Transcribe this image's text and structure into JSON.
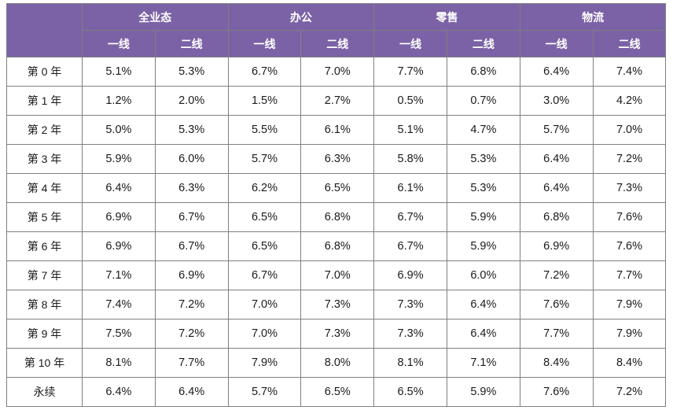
{
  "header": {
    "corner": "",
    "groups": [
      "全业态",
      "办公",
      "零售",
      "物流"
    ],
    "sub": [
      "一线",
      "二线"
    ],
    "colors": {
      "header_bg": "#7b62a6",
      "header_text": "#ffffff",
      "border": "#7f7f7f"
    }
  },
  "rows": [
    {
      "label": "第 0 年",
      "values": [
        "5.1%",
        "5.3%",
        "6.7%",
        "7.0%",
        "7.7%",
        "6.8%",
        "6.4%",
        "7.4%"
      ]
    },
    {
      "label": "第 1 年",
      "values": [
        "1.2%",
        "2.0%",
        "1.5%",
        "2.7%",
        "0.5%",
        "0.7%",
        "3.0%",
        "4.2%"
      ]
    },
    {
      "label": "第 2 年",
      "values": [
        "5.0%",
        "5.3%",
        "5.5%",
        "6.1%",
        "5.1%",
        "4.7%",
        "5.7%",
        "7.0%"
      ]
    },
    {
      "label": "第 3 年",
      "values": [
        "5.9%",
        "6.0%",
        "5.7%",
        "6.3%",
        "5.8%",
        "5.3%",
        "6.4%",
        "7.2%"
      ]
    },
    {
      "label": "第 4 年",
      "values": [
        "6.4%",
        "6.3%",
        "6.2%",
        "6.5%",
        "6.1%",
        "5.3%",
        "6.4%",
        "7.3%"
      ]
    },
    {
      "label": "第 5 年",
      "values": [
        "6.9%",
        "6.7%",
        "6.5%",
        "6.8%",
        "6.7%",
        "5.9%",
        "6.8%",
        "7.6%"
      ]
    },
    {
      "label": "第 6 年",
      "values": [
        "6.9%",
        "6.7%",
        "6.5%",
        "6.8%",
        "6.7%",
        "5.9%",
        "6.9%",
        "7.6%"
      ]
    },
    {
      "label": "第 7 年",
      "values": [
        "7.1%",
        "6.9%",
        "6.7%",
        "7.0%",
        "6.9%",
        "6.0%",
        "7.2%",
        "7.7%"
      ]
    },
    {
      "label": "第 8 年",
      "values": [
        "7.4%",
        "7.2%",
        "7.0%",
        "7.3%",
        "7.3%",
        "6.4%",
        "7.6%",
        "7.9%"
      ]
    },
    {
      "label": "第 9 年",
      "values": [
        "7.5%",
        "7.2%",
        "7.0%",
        "7.3%",
        "7.3%",
        "6.4%",
        "7.7%",
        "7.9%"
      ]
    },
    {
      "label": "第 10 年",
      "values": [
        "8.1%",
        "7.7%",
        "7.9%",
        "8.0%",
        "8.1%",
        "7.1%",
        "8.4%",
        "8.4%"
      ]
    },
    {
      "label": "永续",
      "values": [
        "6.4%",
        "6.4%",
        "5.7%",
        "6.5%",
        "6.5%",
        "5.9%",
        "7.6%",
        "7.2%"
      ]
    }
  ]
}
